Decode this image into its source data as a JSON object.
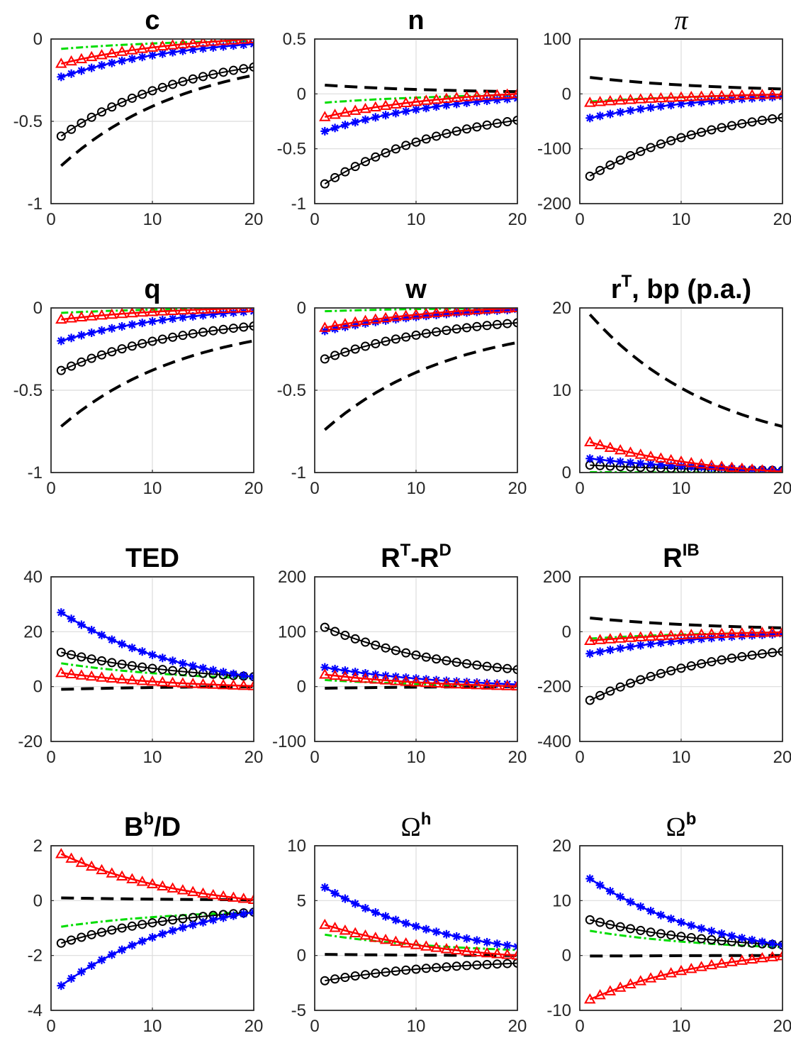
{
  "chart_data": [
    {
      "type": "line",
      "title": "c",
      "title_sup": "",
      "title_style": "bold",
      "x_range": [
        1,
        20
      ],
      "xlim": [
        0,
        20
      ],
      "ylim": [
        -1,
        0
      ],
      "xticks": [
        0,
        10,
        20
      ],
      "yticks": [
        -1,
        -0.5,
        0
      ],
      "xtick_labels": [
        "0",
        "10",
        "20"
      ],
      "ytick_labels": [
        "-1",
        "-0.5",
        "0"
      ],
      "grid": true,
      "series": [
        {
          "style": "black-dashed",
          "start": -0.77,
          "end": -0.22
        },
        {
          "style": "black-circle",
          "start": -0.59,
          "end": -0.17
        },
        {
          "style": "blue-star",
          "start": -0.23,
          "end": -0.03
        },
        {
          "style": "green-dashdot",
          "start": -0.06,
          "end": -0.01
        },
        {
          "style": "red-triangle",
          "start": -0.15,
          "end": 0.0
        }
      ]
    },
    {
      "type": "line",
      "title": "n",
      "title_sup": "",
      "title_style": "bold",
      "x_range": [
        1,
        20
      ],
      "xlim": [
        0,
        20
      ],
      "ylim": [
        -1,
        0.5
      ],
      "xticks": [
        0,
        10,
        20
      ],
      "yticks": [
        -1,
        -0.5,
        0,
        0.5
      ],
      "xtick_labels": [
        "0",
        "10",
        "20"
      ],
      "ytick_labels": [
        "-1",
        "-0.5",
        "0",
        "0.5"
      ],
      "grid": true,
      "series": [
        {
          "style": "black-dashed",
          "start": 0.08,
          "end": 0.02
        },
        {
          "style": "black-circle",
          "start": -0.82,
          "end": -0.24
        },
        {
          "style": "blue-star",
          "start": -0.34,
          "end": -0.04
        },
        {
          "style": "green-dashdot",
          "start": -0.08,
          "end": -0.01
        },
        {
          "style": "red-triangle",
          "start": -0.21,
          "end": 0.0
        }
      ]
    },
    {
      "type": "line",
      "title": "π",
      "title_sup": "",
      "title_style": "italic",
      "x_range": [
        1,
        20
      ],
      "xlim": [
        0,
        20
      ],
      "ylim": [
        -200,
        100
      ],
      "xticks": [
        0,
        10,
        20
      ],
      "yticks": [
        -200,
        -100,
        0,
        100
      ],
      "xtick_labels": [
        "0",
        "10",
        "20"
      ],
      "ytick_labels": [
        "-200",
        "-100",
        "0",
        "100"
      ],
      "grid": true,
      "series": [
        {
          "style": "black-dashed",
          "start": 30,
          "end": 9
        },
        {
          "style": "black-circle",
          "start": -150,
          "end": -43
        },
        {
          "style": "blue-star",
          "start": -44,
          "end": -5
        },
        {
          "style": "green-dashdot",
          "start": -14,
          "end": -2
        },
        {
          "style": "red-triangle",
          "start": -16,
          "end": -1
        }
      ]
    },
    {
      "type": "line",
      "title": "q",
      "title_sup": "",
      "title_style": "bold",
      "x_range": [
        1,
        20
      ],
      "xlim": [
        0,
        20
      ],
      "ylim": [
        -1,
        0
      ],
      "xticks": [
        0,
        10,
        20
      ],
      "yticks": [
        -1,
        -0.5,
        0
      ],
      "xtick_labels": [
        "0",
        "10",
        "20"
      ],
      "ytick_labels": [
        "-1",
        "-0.5",
        "0"
      ],
      "grid": true,
      "series": [
        {
          "style": "black-dashed",
          "start": -0.72,
          "end": -0.2
        },
        {
          "style": "black-circle",
          "start": -0.38,
          "end": -0.11
        },
        {
          "style": "blue-star",
          "start": -0.2,
          "end": -0.02
        },
        {
          "style": "green-dashdot",
          "start": -0.03,
          "end": 0.0
        },
        {
          "style": "red-triangle",
          "start": -0.07,
          "end": 0.0
        }
      ]
    },
    {
      "type": "line",
      "title": "w",
      "title_sup": "",
      "title_style": "bold",
      "x_range": [
        1,
        20
      ],
      "xlim": [
        0,
        20
      ],
      "ylim": [
        -1,
        0
      ],
      "xticks": [
        0,
        10,
        20
      ],
      "yticks": [
        -1,
        -0.5,
        0
      ],
      "xtick_labels": [
        "0",
        "10",
        "20"
      ],
      "ytick_labels": [
        "-1",
        "-0.5",
        "0"
      ],
      "grid": true,
      "series": [
        {
          "style": "black-dashed",
          "start": -0.74,
          "end": -0.21
        },
        {
          "style": "black-circle",
          "start": -0.31,
          "end": -0.09
        },
        {
          "style": "blue-star",
          "start": -0.14,
          "end": -0.01
        },
        {
          "style": "green-dashdot",
          "start": -0.02,
          "end": 0.0
        },
        {
          "style": "red-triangle",
          "start": -0.12,
          "end": 0.0
        }
      ]
    },
    {
      "type": "line",
      "title": "r",
      "title_sup": "T",
      "title_suffix": ", bp (p.a.)",
      "title_style": "bold",
      "x_range": [
        1,
        20
      ],
      "xlim": [
        0,
        20
      ],
      "ylim": [
        0,
        20
      ],
      "xticks": [
        0,
        10,
        20
      ],
      "yticks": [
        0,
        10,
        20
      ],
      "xtick_labels": [
        "0",
        "10",
        "20"
      ],
      "ytick_labels": [
        "0",
        "10",
        "20"
      ],
      "grid": true,
      "series": [
        {
          "style": "black-dashed",
          "start": 19.2,
          "end": 5.6
        },
        {
          "style": "black-circle",
          "start": 0.9,
          "end": 0.25
        },
        {
          "style": "blue-star",
          "start": 1.7,
          "end": 0.3
        },
        {
          "style": "green-dashdot",
          "start": 0.05,
          "end": 0.0
        },
        {
          "style": "red-triangle",
          "start": 3.7,
          "end": 0.1
        }
      ]
    },
    {
      "type": "line",
      "title": "TED",
      "title_sup": "",
      "title_style": "bold",
      "x_range": [
        1,
        20
      ],
      "xlim": [
        0,
        20
      ],
      "ylim": [
        -20,
        40
      ],
      "xticks": [
        0,
        10,
        20
      ],
      "yticks": [
        -20,
        0,
        20,
        40
      ],
      "xtick_labels": [
        "0",
        "10",
        "20"
      ],
      "ytick_labels": [
        "-20",
        "0",
        "20",
        "40"
      ],
      "grid": true,
      "series": [
        {
          "style": "black-dashed",
          "start": -1,
          "end": 0
        },
        {
          "style": "black-circle",
          "start": 12.5,
          "end": 3.6
        },
        {
          "style": "blue-star",
          "start": 27,
          "end": 3.5
        },
        {
          "style": "green-dashdot",
          "start": 8.5,
          "end": 3.0
        },
        {
          "style": "red-triangle",
          "start": 5,
          "end": 0.2
        }
      ]
    },
    {
      "type": "line",
      "title": "R",
      "title_sup": "T",
      "title_suffix": "-R",
      "title_sup2": "D",
      "title_style": "bold",
      "x_range": [
        1,
        20
      ],
      "xlim": [
        0,
        20
      ],
      "ylim": [
        -100,
        200
      ],
      "xticks": [
        0,
        10,
        20
      ],
      "yticks": [
        -100,
        0,
        100,
        200
      ],
      "xtick_labels": [
        "0",
        "10",
        "20"
      ],
      "ytick_labels": [
        "-100",
        "0",
        "100",
        "200"
      ],
      "grid": true,
      "series": [
        {
          "style": "black-dashed",
          "start": -3,
          "end": 0
        },
        {
          "style": "black-circle",
          "start": 108,
          "end": 31
        },
        {
          "style": "blue-star",
          "start": 35,
          "end": 4
        },
        {
          "style": "green-dashdot",
          "start": 12,
          "end": 1
        },
        {
          "style": "red-triangle",
          "start": 22,
          "end": 0.5
        }
      ]
    },
    {
      "type": "line",
      "title": "R",
      "title_sup": "IB",
      "title_style": "bold",
      "x_range": [
        1,
        20
      ],
      "xlim": [
        0,
        20
      ],
      "ylim": [
        -400,
        200
      ],
      "xticks": [
        0,
        10,
        20
      ],
      "yticks": [
        -400,
        -200,
        0,
        200
      ],
      "xtick_labels": [
        "0",
        "10",
        "20"
      ],
      "ytick_labels": [
        "-400",
        "-200",
        "0",
        "200"
      ],
      "grid": true,
      "series": [
        {
          "style": "black-dashed",
          "start": 50,
          "end": 14
        },
        {
          "style": "black-circle",
          "start": -250,
          "end": -72
        },
        {
          "style": "blue-star",
          "start": -80,
          "end": -8
        },
        {
          "style": "green-dashdot",
          "start": -25,
          "end": -3
        },
        {
          "style": "red-triangle",
          "start": -33,
          "end": -2
        }
      ]
    },
    {
      "type": "line",
      "title": "B",
      "title_sup": "b",
      "title_suffix": "/D",
      "title_style": "bold",
      "x_range": [
        1,
        20
      ],
      "xlim": [
        0,
        20
      ],
      "ylim": [
        -4,
        2
      ],
      "xticks": [
        0,
        10,
        20
      ],
      "yticks": [
        -4,
        -2,
        0,
        2
      ],
      "xtick_labels": [
        "0",
        "10",
        "20"
      ],
      "ytick_labels": [
        "-4",
        "-2",
        "0",
        "2"
      ],
      "grid": true,
      "series": [
        {
          "style": "black-dashed",
          "start": 0.1,
          "end": 0.03
        },
        {
          "style": "black-circle",
          "start": -1.55,
          "end": -0.42
        },
        {
          "style": "blue-star",
          "start": -3.1,
          "end": -0.42
        },
        {
          "style": "green-dashdot",
          "start": -0.95,
          "end": -0.42
        },
        {
          "style": "red-triangle",
          "start": 1.7,
          "end": 0.03
        }
      ]
    },
    {
      "type": "line",
      "title": "Ω",
      "title_sup": "h",
      "title_style": "greek",
      "x_range": [
        1,
        20
      ],
      "xlim": [
        0,
        20
      ],
      "ylim": [
        -5,
        10
      ],
      "xticks": [
        0,
        10,
        20
      ],
      "yticks": [
        -5,
        0,
        5,
        10
      ],
      "xtick_labels": [
        "0",
        "10",
        "20"
      ],
      "ytick_labels": [
        "-5",
        "0",
        "5",
        "10"
      ],
      "grid": true,
      "series": [
        {
          "style": "black-dashed",
          "start": 0.1,
          "end": 0.0
        },
        {
          "style": "black-circle",
          "start": -2.3,
          "end": -0.7
        },
        {
          "style": "blue-star",
          "start": 6.2,
          "end": 0.8
        },
        {
          "style": "green-dashdot",
          "start": 1.9,
          "end": 0.5
        },
        {
          "style": "red-triangle",
          "start": 2.8,
          "end": 0.0
        }
      ]
    },
    {
      "type": "line",
      "title": "Ω",
      "title_sup": "b",
      "title_style": "greek",
      "x_range": [
        1,
        20
      ],
      "xlim": [
        0,
        20
      ],
      "ylim": [
        -10,
        20
      ],
      "xticks": [
        0,
        10,
        20
      ],
      "yticks": [
        -10,
        0,
        10,
        20
      ],
      "xtick_labels": [
        "0",
        "10",
        "20"
      ],
      "ytick_labels": [
        "-10",
        "0",
        "10",
        "20"
      ],
      "grid": true,
      "series": [
        {
          "style": "black-dashed",
          "start": -0.1,
          "end": 0.0
        },
        {
          "style": "black-circle",
          "start": 6.5,
          "end": 1.9
        },
        {
          "style": "blue-star",
          "start": 14,
          "end": 1.9
        },
        {
          "style": "green-dashdot",
          "start": 4.5,
          "end": 1.5
        },
        {
          "style": "red-triangle",
          "start": -8,
          "end": -0.1
        }
      ]
    }
  ],
  "series_colors": {
    "black": "#000000",
    "blue": "#0000ff",
    "red": "#ff0000",
    "green": "#00dd00"
  }
}
